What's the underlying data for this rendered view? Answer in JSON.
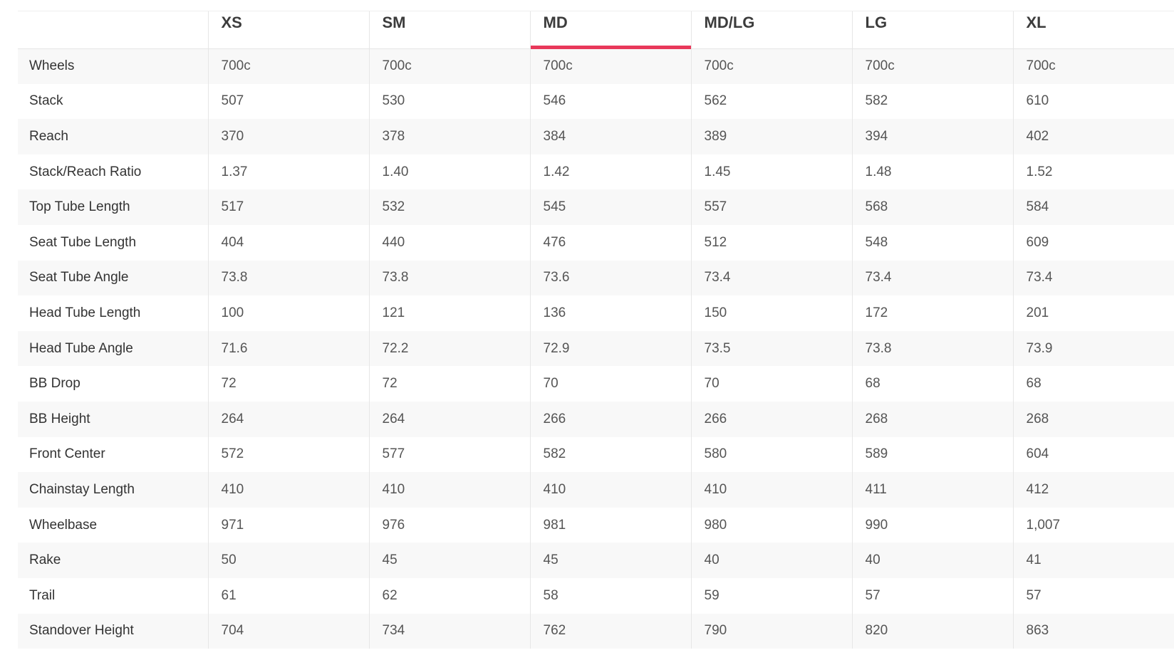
{
  "accent_color": "#e8385a",
  "active_size": "MD",
  "headers": [
    "",
    "XS",
    "SM",
    "MD",
    "MD/LG",
    "LG",
    "XL"
  ],
  "rows": [
    {
      "label": "Wheels",
      "values": [
        "700c",
        "700c",
        "700c",
        "700c",
        "700c",
        "700c"
      ]
    },
    {
      "label": "Stack",
      "values": [
        "507",
        "530",
        "546",
        "562",
        "582",
        "610"
      ]
    },
    {
      "label": "Reach",
      "values": [
        "370",
        "378",
        "384",
        "389",
        "394",
        "402"
      ]
    },
    {
      "label": "Stack/Reach Ratio",
      "values": [
        "1.37",
        "1.40",
        "1.42",
        "1.45",
        "1.48",
        "1.52"
      ]
    },
    {
      "label": "Top Tube Length",
      "values": [
        "517",
        "532",
        "545",
        "557",
        "568",
        "584"
      ]
    },
    {
      "label": "Seat Tube Length",
      "values": [
        "404",
        "440",
        "476",
        "512",
        "548",
        "609"
      ]
    },
    {
      "label": "Seat Tube Angle",
      "values": [
        "73.8",
        "73.8",
        "73.6",
        "73.4",
        "73.4",
        "73.4"
      ]
    },
    {
      "label": "Head Tube Length",
      "values": [
        "100",
        "121",
        "136",
        "150",
        "172",
        "201"
      ]
    },
    {
      "label": "Head Tube Angle",
      "values": [
        "71.6",
        "72.2",
        "72.9",
        "73.5",
        "73.8",
        "73.9"
      ]
    },
    {
      "label": "BB Drop",
      "values": [
        "72",
        "72",
        "70",
        "70",
        "68",
        "68"
      ]
    },
    {
      "label": "BB Height",
      "values": [
        "264",
        "264",
        "266",
        "266",
        "268",
        "268"
      ]
    },
    {
      "label": "Front Center",
      "values": [
        "572",
        "577",
        "582",
        "580",
        "589",
        "604"
      ]
    },
    {
      "label": "Chainstay Length",
      "values": [
        "410",
        "410",
        "410",
        "410",
        "411",
        "412"
      ]
    },
    {
      "label": "Wheelbase",
      "values": [
        "971",
        "976",
        "981",
        "980",
        "990",
        "1,007"
      ]
    },
    {
      "label": "Rake",
      "values": [
        "50",
        "45",
        "45",
        "40",
        "40",
        "41"
      ]
    },
    {
      "label": "Trail",
      "values": [
        "61",
        "62",
        "58",
        "59",
        "57",
        "57"
      ]
    },
    {
      "label": "Standover Height",
      "values": [
        "704",
        "734",
        "762",
        "790",
        "820",
        "863"
      ]
    }
  ]
}
